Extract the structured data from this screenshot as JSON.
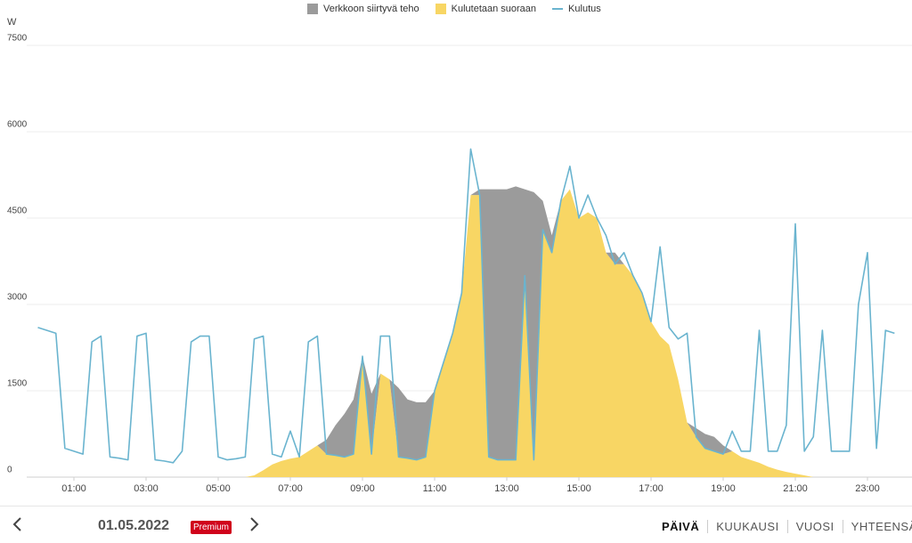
{
  "chart_data": {
    "type": "area",
    "y_label": "W",
    "stacked": true,
    "x": [
      0,
      0.25,
      0.5,
      0.75,
      1,
      1.25,
      1.5,
      1.75,
      2,
      2.25,
      2.5,
      2.75,
      3,
      3.25,
      3.5,
      3.75,
      4,
      4.25,
      4.5,
      4.75,
      5,
      5.25,
      5.5,
      5.75,
      6,
      6.25,
      6.5,
      6.75,
      7,
      7.25,
      7.5,
      7.75,
      8,
      8.25,
      8.5,
      8.75,
      9,
      9.25,
      9.5,
      9.75,
      10,
      10.25,
      10.5,
      10.75,
      11,
      11.25,
      11.5,
      11.75,
      12,
      12.25,
      12.5,
      12.75,
      13,
      13.25,
      13.5,
      13.75,
      14,
      14.25,
      14.5,
      14.75,
      15,
      15.25,
      15.5,
      15.75,
      16,
      16.25,
      16.5,
      16.75,
      17,
      17.25,
      17.5,
      17.75,
      18,
      18.25,
      18.5,
      18.75,
      19,
      19.25,
      19.5,
      19.75,
      20,
      20.25,
      20.5,
      20.75,
      21,
      21.25,
      21.5,
      21.75,
      22,
      22.25,
      22.5,
      22.75,
      23,
      23.25,
      23.5,
      23.75
    ],
    "series": [
      {
        "name": "Verkkoon siirtyvä teho",
        "color": "#9b9b9b",
        "kind": "area",
        "values": [
          0,
          0,
          0,
          0,
          0,
          0,
          0,
          0,
          0,
          0,
          0,
          0,
          0,
          0,
          0,
          0,
          0,
          0,
          0,
          0,
          0,
          0,
          0,
          0,
          0,
          0,
          0,
          0,
          0,
          0,
          0,
          0,
          250,
          520,
          750,
          950,
          0,
          1050,
          0,
          0,
          1200,
          1020,
          1000,
          950,
          0,
          0,
          0,
          0,
          0,
          100,
          4650,
          4700,
          4700,
          4750,
          1500,
          4650,
          500,
          300,
          0,
          0,
          0,
          0,
          0,
          0,
          200,
          0,
          0,
          0,
          0,
          0,
          0,
          0,
          0,
          150,
          250,
          250,
          150,
          0,
          0,
          0,
          0,
          0,
          0,
          0,
          0,
          0,
          0,
          0,
          0,
          0,
          0,
          0,
          0,
          0,
          0,
          0
        ]
      },
      {
        "name": "Kulutetaan suoraan",
        "color": "#f8d664",
        "kind": "area",
        "values": [
          0,
          0,
          0,
          0,
          0,
          0,
          0,
          0,
          0,
          0,
          0,
          0,
          0,
          0,
          0,
          0,
          0,
          0,
          0,
          0,
          0,
          0,
          0,
          0,
          30,
          120,
          220,
          280,
          320,
          350,
          450,
          550,
          400,
          380,
          350,
          400,
          2100,
          400,
          1800,
          1700,
          350,
          330,
          300,
          350,
          1500,
          2000,
          2500,
          3200,
          4900,
          4900,
          350,
          300,
          300,
          300,
          3500,
          300,
          4300,
          3900,
          4800,
          5000,
          4500,
          4600,
          4500,
          3900,
          3700,
          3700,
          3500,
          3200,
          2700,
          2450,
          2300,
          1700,
          950,
          700,
          500,
          450,
          400,
          450,
          350,
          300,
          250,
          180,
          130,
          90,
          60,
          30,
          0,
          0,
          0,
          0,
          0,
          0,
          0,
          0,
          0,
          0
        ]
      },
      {
        "name": "Kulutus",
        "color": "#6ab4cf",
        "kind": "line",
        "values": [
          2600,
          2550,
          2500,
          500,
          450,
          400,
          2350,
          2450,
          350,
          330,
          300,
          2450,
          2500,
          300,
          280,
          250,
          450,
          2350,
          2450,
          2450,
          350,
          300,
          320,
          350,
          2400,
          2450,
          400,
          350,
          800,
          350,
          2350,
          2450,
          400,
          380,
          350,
          400,
          2100,
          400,
          2450,
          2450,
          350,
          330,
          300,
          350,
          1500,
          2000,
          2500,
          3200,
          5700,
          4900,
          350,
          300,
          300,
          300,
          3500,
          300,
          4300,
          3900,
          4800,
          5400,
          4500,
          4900,
          4500,
          4200,
          3700,
          3900,
          3500,
          3200,
          2700,
          4000,
          2600,
          2400,
          2500,
          700,
          500,
          450,
          400,
          800,
          450,
          450,
          2550,
          450,
          450,
          900,
          4400,
          450,
          700,
          2550,
          450,
          450,
          450,
          3000,
          3900,
          500,
          2550,
          2500
        ]
      }
    ],
    "xlim": [
      0,
      24
    ],
    "xticks": [
      {
        "value": 1,
        "label": "01:00"
      },
      {
        "value": 3,
        "label": "03:00"
      },
      {
        "value": 5,
        "label": "05:00"
      },
      {
        "value": 7,
        "label": "07:00"
      },
      {
        "value": 9,
        "label": "09:00"
      },
      {
        "value": 11,
        "label": "11:00"
      },
      {
        "value": 13,
        "label": "13:00"
      },
      {
        "value": 15,
        "label": "15:00"
      },
      {
        "value": 17,
        "label": "17:00"
      },
      {
        "value": 19,
        "label": "19:00"
      },
      {
        "value": 21,
        "label": "21:00"
      },
      {
        "value": 23,
        "label": "23:00"
      }
    ],
    "ylim": [
      0,
      7500
    ],
    "yticks": [
      0,
      1500,
      3000,
      4500,
      6000,
      7500
    ],
    "grid": true
  },
  "footer": {
    "date": "01.05.2022",
    "badge": "Premium",
    "tabs": [
      "PÄIVÄ",
      "KUUKAUSI",
      "VUOSI",
      "YHTEENSÄ"
    ],
    "active_tab": 0
  }
}
